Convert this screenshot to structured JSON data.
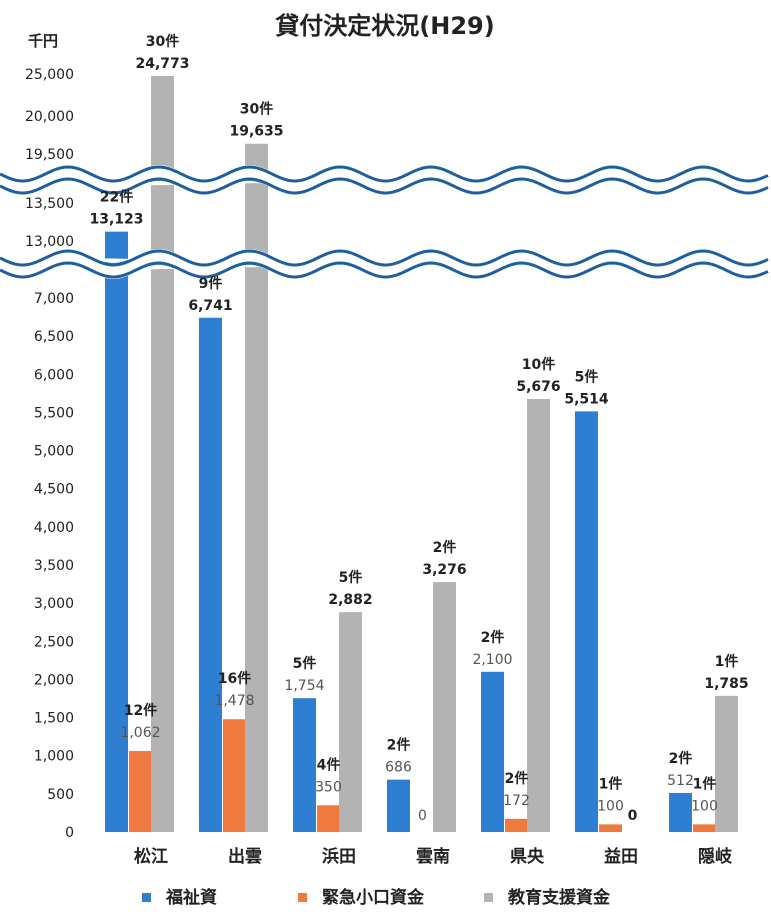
{
  "chart_data": {
    "type": "bar",
    "title": "貸付決定状況(H29)",
    "unit_label": "千円",
    "categories": [
      "松江",
      "出雲",
      "浜田",
      "雲南",
      "県央",
      "益田",
      "隠岐"
    ],
    "series": [
      {
        "name": "福祉資",
        "values": [
          13123,
          6741,
          1754,
          686,
          2100,
          5514,
          512
        ],
        "value_labels": [
          "13,123",
          "6,741",
          "1,754",
          "686",
          "2,100",
          "5,514",
          "512"
        ],
        "counts": [
          "22件",
          "9件",
          "5件",
          "2件",
          "2件",
          "5件",
          "2件"
        ]
      },
      {
        "name": "緊急小口資金",
        "values": [
          1062,
          1478,
          350,
          0,
          172,
          100,
          100
        ],
        "value_labels": [
          "1,062",
          "1,478",
          "350",
          "0",
          "172",
          "100",
          "100"
        ],
        "counts": [
          "12件",
          "16件",
          "4件",
          "",
          "2件",
          "1件",
          "1件"
        ]
      },
      {
        "name": "教育支援資金",
        "values": [
          24773,
          19635,
          2882,
          3276,
          5676,
          0,
          1785
        ],
        "value_labels": [
          "24,773",
          "19,635",
          "2,882",
          "3,276",
          "5,676",
          "0",
          "1,785"
        ],
        "counts": [
          "30件",
          "30件",
          "5件",
          "2件",
          "10件",
          "",
          "1件"
        ]
      }
    ],
    "y_ticks": [
      "0",
      "500",
      "1,000",
      "1,500",
      "2,000",
      "2,500",
      "3,000",
      "3,500",
      "4,000",
      "4,500",
      "5,000",
      "5,500",
      "6,000",
      "6,500",
      "7,000",
      "13,000",
      "13,500",
      "19,500",
      "20,000",
      "25,000"
    ],
    "axis_breaks": [
      [
        7000,
        13000
      ],
      [
        13500,
        19500
      ]
    ],
    "colors": {
      "福祉資": "#2e7fd1",
      "緊急小口資金": "#ee7a3f",
      "教育支援資金": "#b3b3b3",
      "break_line": "#1f5fa0"
    },
    "legend_position": "bottom",
    "grid": false
  }
}
